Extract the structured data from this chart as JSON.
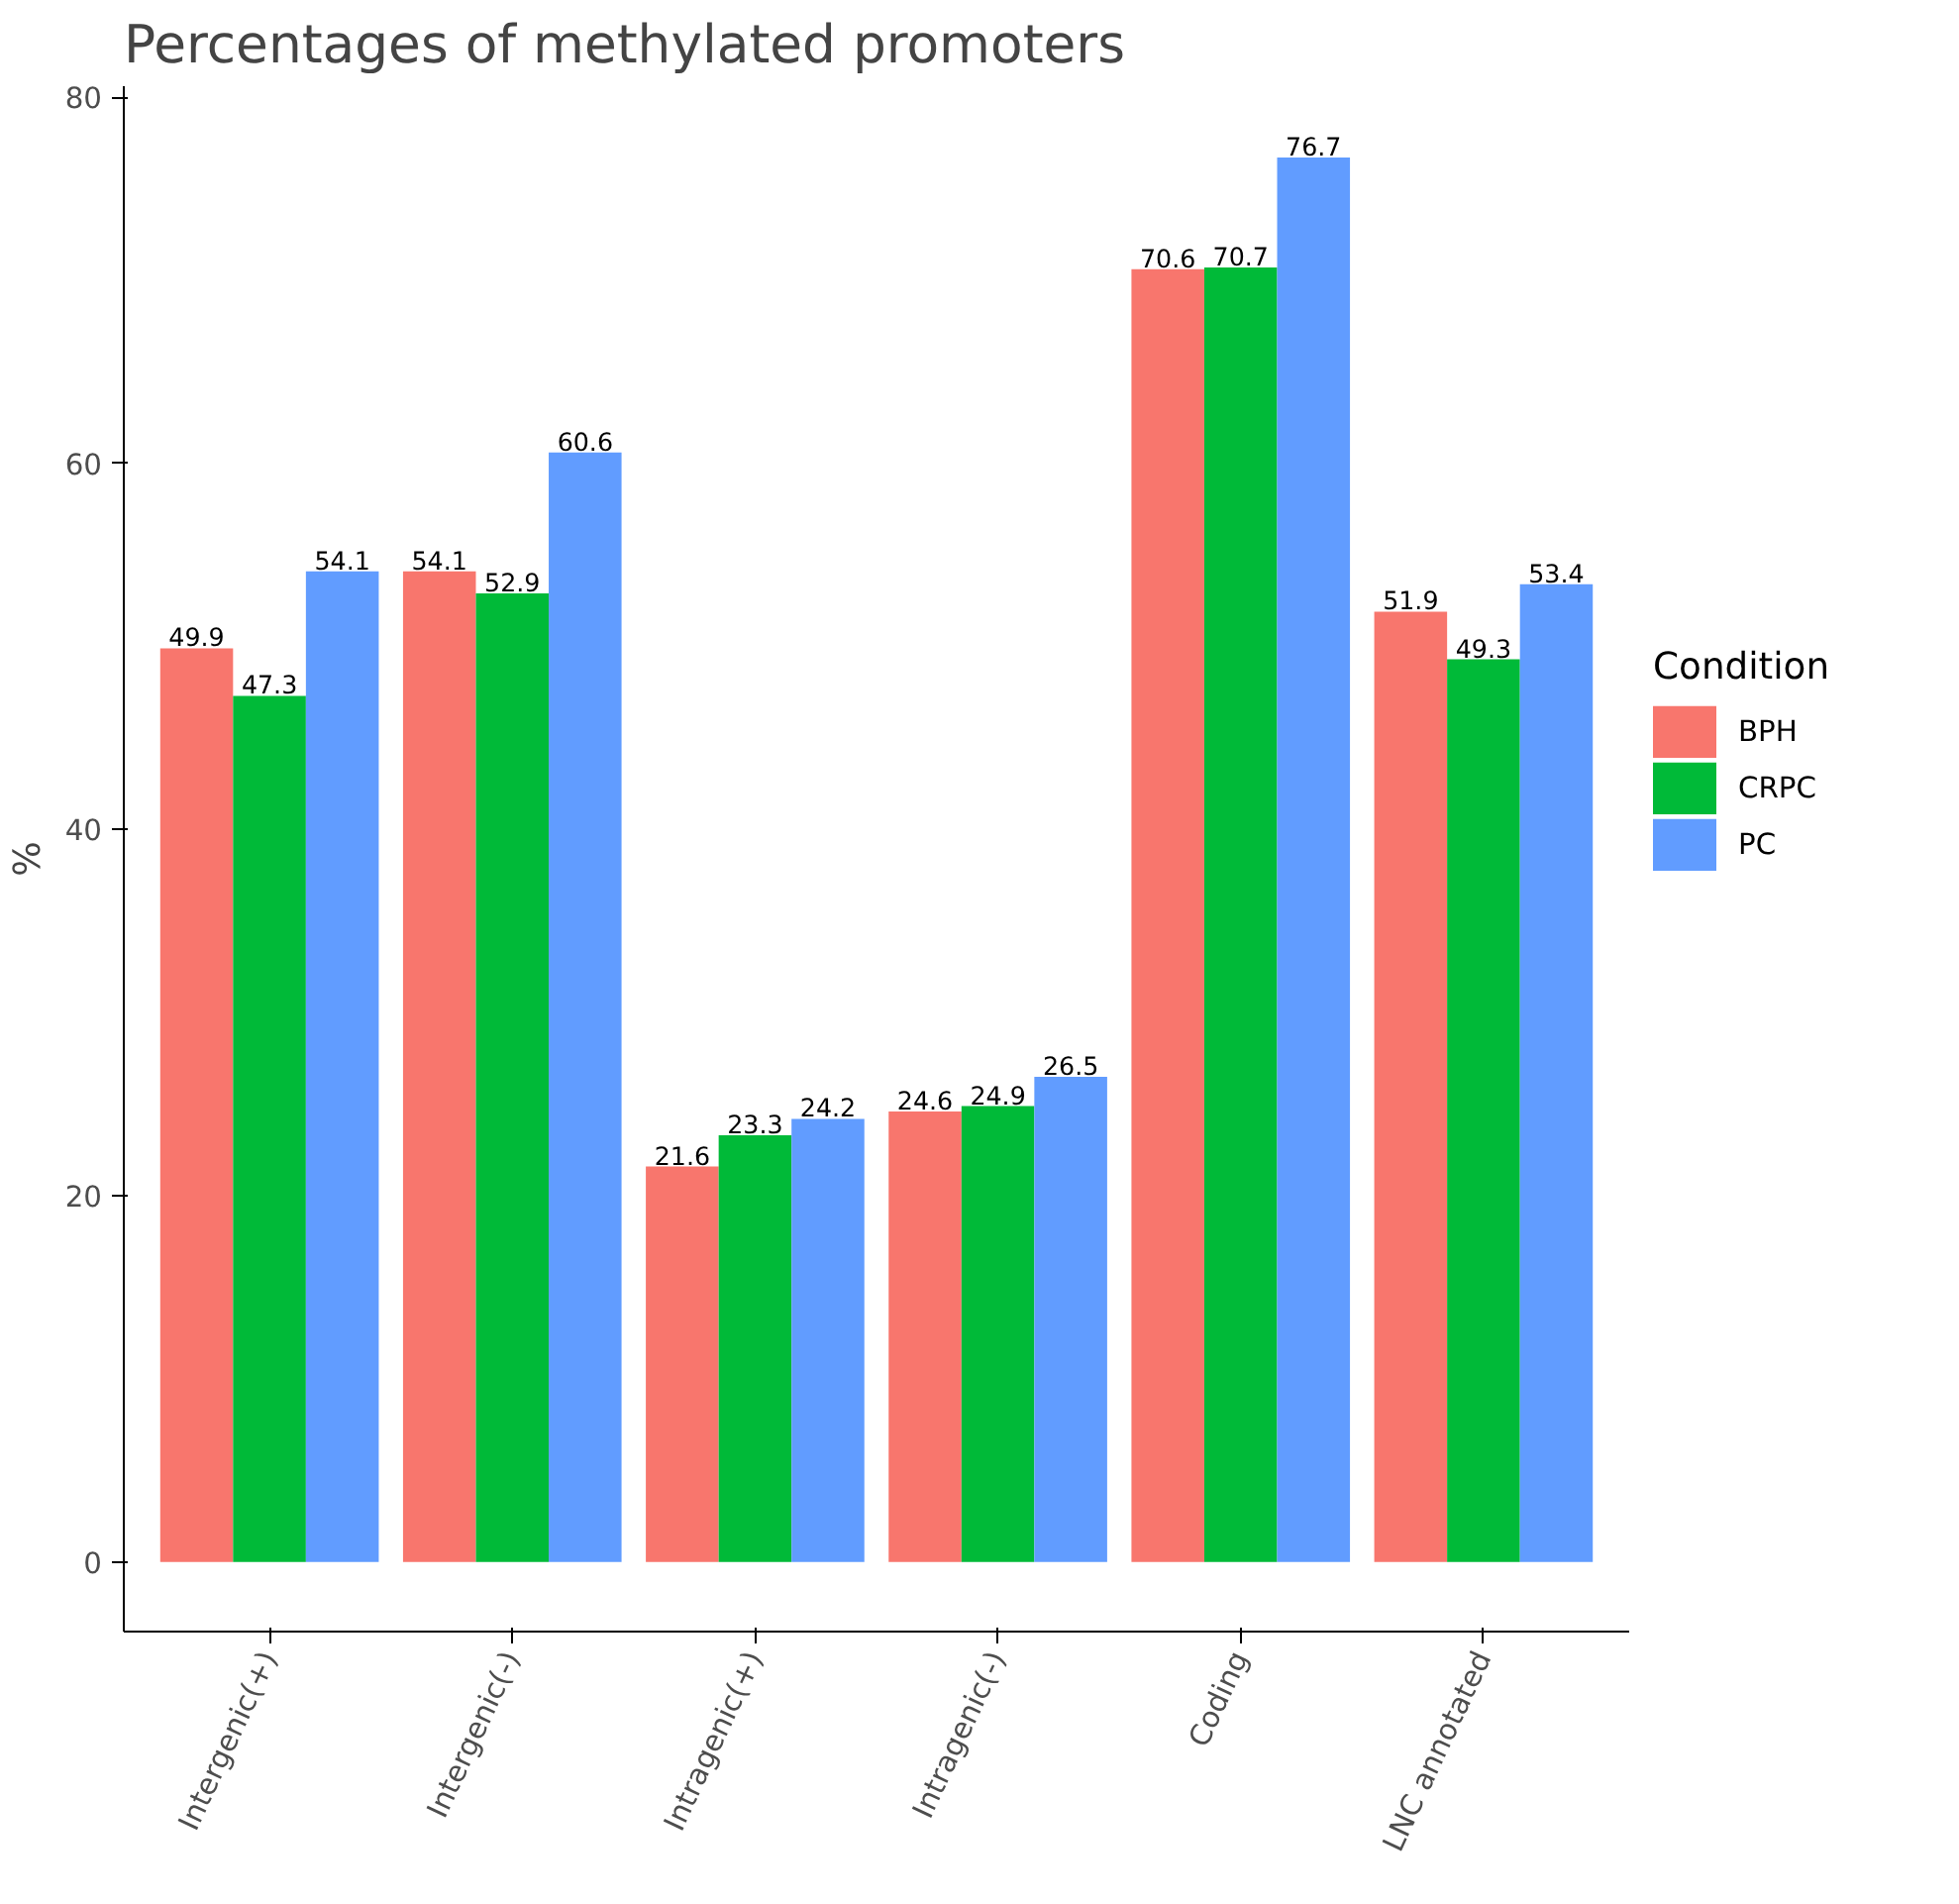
{
  "chart_data": {
    "type": "bar",
    "title": "Percentages of methylated promoters",
    "ylabel": "%",
    "legend_title": "Condition",
    "categories": [
      "Intergenic(+)",
      "Intergenic(-)",
      "Intragenic(+)",
      "Intragenic(-)",
      "Coding",
      "LNC annotated"
    ],
    "series": [
      {
        "name": "BPH",
        "color": "#f8766d",
        "values": [
          49.9,
          54.1,
          21.6,
          24.6,
          70.6,
          51.9
        ]
      },
      {
        "name": "CRPC",
        "color": "#00ba38",
        "values": [
          47.3,
          52.9,
          23.3,
          24.9,
          70.7,
          49.3
        ]
      },
      {
        "name": "PC",
        "color": "#619cff",
        "values": [
          54.1,
          60.6,
          24.2,
          26.5,
          76.7,
          53.4
        ]
      }
    ],
    "ylim": [
      -3.8,
      80.6
    ],
    "yticks": [
      0,
      20,
      40,
      60,
      80
    ],
    "data_labels": true,
    "grid": false,
    "legend": "right"
  }
}
